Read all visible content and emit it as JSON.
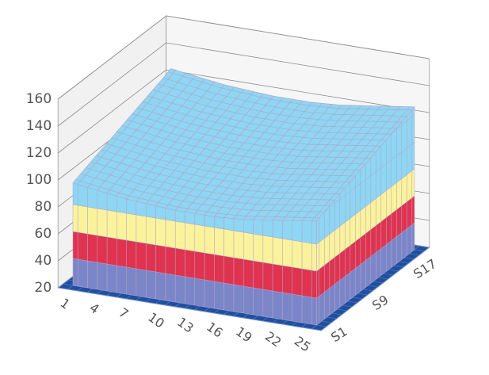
{
  "chart_data": {
    "type": "surface",
    "categories": [
      "1",
      null,
      null,
      "4",
      null,
      null,
      "7",
      null,
      null,
      "10",
      null,
      null,
      "13",
      null,
      null,
      "16",
      null,
      null,
      "19",
      null,
      null,
      "22",
      null,
      null,
      "25",
      null
    ],
    "series": [
      {
        "name": "S1",
        "values": [
          96,
          95,
          94,
          93,
          92,
          91,
          90,
          90,
          89,
          89,
          88,
          88,
          88,
          88,
          88,
          88,
          89,
          89,
          90,
          91,
          92,
          93,
          94,
          95,
          96,
          97
        ]
      },
      {
        "name": null,
        "values": [
          98,
          97,
          96,
          95,
          94,
          93,
          92,
          92,
          91,
          91,
          90,
          90,
          90,
          90,
          90,
          90,
          91,
          91,
          92,
          93,
          94,
          95,
          96,
          97,
          98,
          99
        ]
      },
      {
        "name": null,
        "values": [
          99,
          98,
          97,
          96,
          95,
          94,
          93,
          93,
          92,
          92,
          91,
          91,
          91,
          91,
          91,
          91,
          92,
          92,
          93,
          94,
          95,
          96,
          97,
          98,
          99,
          100
        ]
      },
      {
        "name": null,
        "values": [
          101,
          100,
          99,
          98,
          97,
          96,
          95,
          95,
          94,
          94,
          93,
          93,
          93,
          93,
          93,
          93,
          94,
          94,
          95,
          96,
          97,
          98,
          99,
          100,
          101,
          102
        ]
      },
      {
        "name": null,
        "values": [
          102,
          101,
          100,
          99,
          98,
          97,
          96,
          96,
          95,
          95,
          94,
          94,
          94,
          94,
          94,
          94,
          95,
          95,
          96,
          97,
          98,
          99,
          100,
          101,
          102,
          103
        ]
      },
      {
        "name": null,
        "values": [
          104,
          103,
          102,
          101,
          100,
          99,
          98,
          98,
          97,
          97,
          96,
          96,
          96,
          96,
          96,
          96,
          97,
          97,
          98,
          99,
          100,
          101,
          102,
          103,
          104,
          105
        ]
      },
      {
        "name": null,
        "values": [
          105,
          104,
          103,
          102,
          101,
          100,
          99,
          99,
          98,
          98,
          97,
          97,
          97,
          97,
          97,
          97,
          98,
          98,
          99,
          100,
          101,
          102,
          103,
          104,
          105,
          106
        ]
      },
      {
        "name": null,
        "values": [
          107,
          106,
          105,
          104,
          103,
          102,
          101,
          101,
          100,
          100,
          99,
          99,
          99,
          99,
          99,
          99,
          100,
          100,
          101,
          102,
          103,
          104,
          105,
          106,
          107,
          108
        ]
      },
      {
        "name": "S9",
        "values": [
          108,
          107,
          106,
          105,
          104,
          103,
          102,
          102,
          101,
          101,
          100,
          100,
          100,
          100,
          100,
          100,
          101,
          101,
          102,
          103,
          104,
          105,
          106,
          107,
          108,
          109
        ]
      },
      {
        "name": null,
        "values": [
          110,
          109,
          108,
          107,
          106,
          105,
          104,
          104,
          103,
          103,
          102,
          102,
          102,
          102,
          102,
          102,
          103,
          103,
          104,
          105,
          106,
          107,
          108,
          109,
          110,
          111
        ]
      },
      {
        "name": null,
        "values": [
          111,
          110,
          109,
          108,
          107,
          106,
          105,
          105,
          104,
          104,
          103,
          103,
          103,
          103,
          103,
          103,
          104,
          104,
          105,
          106,
          107,
          108,
          109,
          110,
          111,
          112
        ]
      },
      {
        "name": null,
        "values": [
          113,
          112,
          111,
          110,
          109,
          108,
          107,
          107,
          106,
          106,
          105,
          105,
          105,
          105,
          105,
          105,
          106,
          106,
          107,
          108,
          109,
          110,
          111,
          112,
          113,
          114
        ]
      },
      {
        "name": null,
        "values": [
          114,
          113,
          112,
          111,
          110,
          109,
          108,
          108,
          107,
          107,
          106,
          106,
          106,
          106,
          106,
          106,
          107,
          107,
          108,
          109,
          110,
          111,
          112,
          113,
          114,
          115
        ]
      },
      {
        "name": null,
        "values": [
          116,
          115,
          114,
          113,
          112,
          111,
          110,
          110,
          109,
          109,
          108,
          108,
          108,
          108,
          108,
          108,
          109,
          109,
          110,
          111,
          112,
          113,
          114,
          115,
          116,
          117
        ]
      },
      {
        "name": null,
        "values": [
          117,
          116,
          115,
          114,
          113,
          112,
          111,
          111,
          110,
          110,
          109,
          109,
          109,
          109,
          109,
          109,
          110,
          110,
          111,
          112,
          113,
          114,
          115,
          116,
          117,
          118
        ]
      },
      {
        "name": null,
        "values": [
          119,
          118,
          117,
          116,
          115,
          114,
          113,
          113,
          112,
          112,
          111,
          111,
          111,
          111,
          111,
          111,
          112,
          112,
          113,
          114,
          115,
          116,
          117,
          118,
          119,
          120
        ]
      },
      {
        "name": "S17",
        "values": [
          120,
          119,
          118,
          117,
          116,
          115,
          114,
          114,
          113,
          113,
          112,
          112,
          112,
          112,
          112,
          112,
          113,
          113,
          114,
          115,
          116,
          117,
          118,
          119,
          120,
          121
        ]
      },
      {
        "name": null,
        "values": [
          122,
          121,
          120,
          119,
          118,
          117,
          116,
          116,
          115,
          115,
          114,
          114,
          114,
          114,
          114,
          114,
          115,
          115,
          116,
          117,
          118,
          119,
          120,
          121,
          122,
          123
        ]
      },
      {
        "name": null,
        "values": [
          123,
          122,
          121,
          120,
          119,
          118,
          117,
          117,
          116,
          116,
          115,
          115,
          115,
          115,
          115,
          115,
          116,
          116,
          117,
          118,
          119,
          120,
          121,
          122,
          123,
          124
        ]
      },
      {
        "name": null,
        "values": [
          125,
          124,
          123,
          122,
          121,
          120,
          119,
          119,
          118,
          118,
          117,
          117,
          117,
          117,
          117,
          117,
          118,
          118,
          119,
          120,
          121,
          122,
          123,
          124,
          125,
          126
        ]
      }
    ],
    "ylim": [
      20,
      160
    ],
    "yticks": [
      20,
      40,
      60,
      80,
      100,
      120,
      140,
      160
    ],
    "band_colors": [
      "#7b86c9",
      "#e0334f",
      "#fbf39c",
      "#8dd6f4"
    ],
    "floor_color": "#1f4fa0"
  }
}
